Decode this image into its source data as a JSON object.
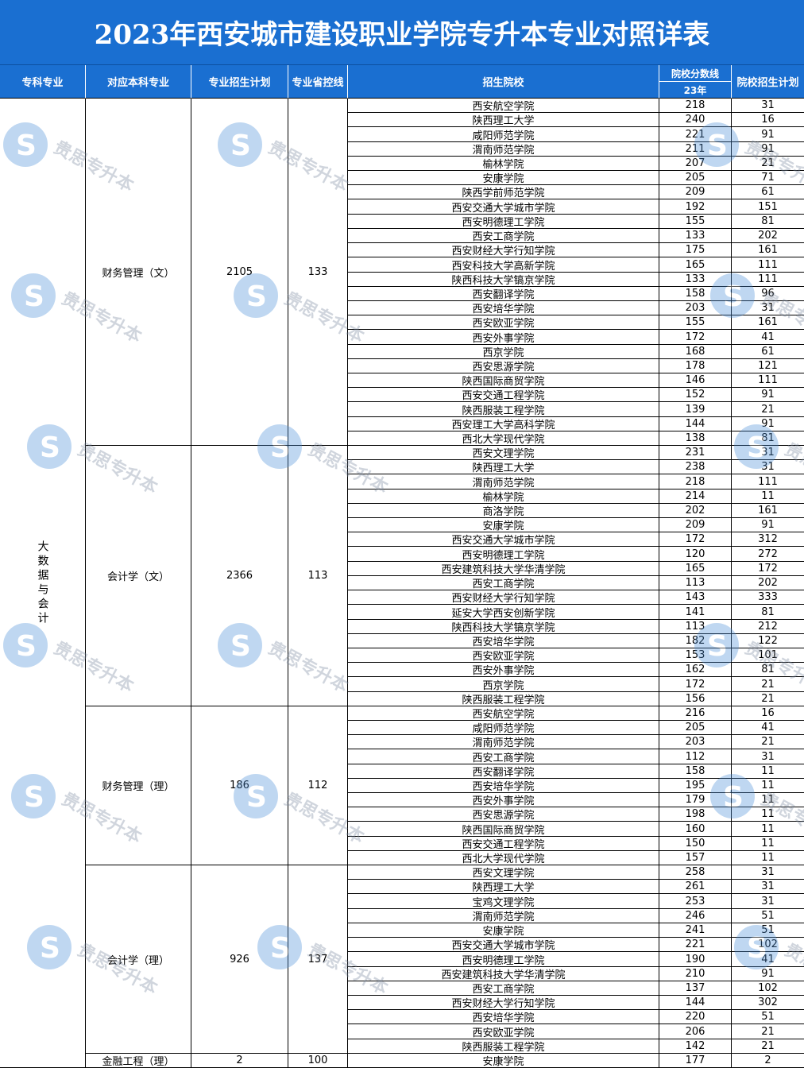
{
  "title": "2023年西安城市建设职业学院专升本专业对照详表",
  "headers": {
    "zhuanke": "专科专业",
    "benke": "对应本科专业",
    "plan": "专业招生计划",
    "control": "专业省控线",
    "school": "招生院校",
    "score_top": "院校分数线",
    "score_year": "23年",
    "school_plan": "院校招生计划"
  },
  "zhuanke_major": "大数据与会计",
  "groups": [
    {
      "major": "财务管理（文）",
      "plan": "2105",
      "control": "133",
      "count": 24
    },
    {
      "major": "会计学（文）",
      "plan": "2366",
      "control": "113",
      "count": 18
    },
    {
      "major": "财务管理（理）",
      "plan": "186",
      "control": "112",
      "count": 11
    },
    {
      "major": "会计学（理）",
      "plan": "926",
      "control": "137",
      "count": 13
    },
    {
      "major": "金融工程（理）",
      "plan": "2",
      "control": "100",
      "count": 1
    }
  ],
  "rows": [
    [
      "西安航空学院",
      "218",
      "31"
    ],
    [
      "陕西理工大学",
      "240",
      "16"
    ],
    [
      "咸阳师范学院",
      "221",
      "91"
    ],
    [
      "渭南师范学院",
      "211",
      "91"
    ],
    [
      "榆林学院",
      "207",
      "21"
    ],
    [
      "安康学院",
      "205",
      "71"
    ],
    [
      "陕西学前师范学院",
      "209",
      "61"
    ],
    [
      "西安交通大学城市学院",
      "192",
      "151"
    ],
    [
      "西安明德理工学院",
      "155",
      "81"
    ],
    [
      "西安工商学院",
      "133",
      "202"
    ],
    [
      "西安财经大学行知学院",
      "175",
      "161"
    ],
    [
      "西安科技大学高新学院",
      "165",
      "111"
    ],
    [
      "陕西科技大学镐京学院",
      "133",
      "111"
    ],
    [
      "西安翻译学院",
      "158",
      "96"
    ],
    [
      "西安培华学院",
      "203",
      "31"
    ],
    [
      "西安欧亚学院",
      "155",
      "161"
    ],
    [
      "西安外事学院",
      "172",
      "41"
    ],
    [
      "西京学院",
      "168",
      "61"
    ],
    [
      "西安思源学院",
      "178",
      "121"
    ],
    [
      "陕西国际商贸学院",
      "146",
      "111"
    ],
    [
      "西安交通工程学院",
      "152",
      "91"
    ],
    [
      "陕西服装工程学院",
      "139",
      "21"
    ],
    [
      "西安理工大学高科学院",
      "144",
      "91"
    ],
    [
      "西北大学现代学院",
      "138",
      "81"
    ],
    [
      "西安文理学院",
      "231",
      "31"
    ],
    [
      "陕西理工大学",
      "238",
      "31"
    ],
    [
      "渭南师范学院",
      "218",
      "111"
    ],
    [
      "榆林学院",
      "214",
      "11"
    ],
    [
      "商洛学院",
      "202",
      "161"
    ],
    [
      "安康学院",
      "209",
      "91"
    ],
    [
      "西安交通大学城市学院",
      "172",
      "312"
    ],
    [
      "西安明德理工学院",
      "120",
      "272"
    ],
    [
      "西安建筑科技大学华清学院",
      "165",
      "172"
    ],
    [
      "西安工商学院",
      "113",
      "202"
    ],
    [
      "西安财经大学行知学院",
      "143",
      "333"
    ],
    [
      "延安大学西安创新学院",
      "141",
      "81"
    ],
    [
      "陕西科技大学镐京学院",
      "113",
      "212"
    ],
    [
      "西安培华学院",
      "182",
      "122"
    ],
    [
      "西安欧亚学院",
      "153",
      "101"
    ],
    [
      "西安外事学院",
      "162",
      "81"
    ],
    [
      "西京学院",
      "172",
      "21"
    ],
    [
      "陕西服装工程学院",
      "156",
      "21"
    ],
    [
      "西安航空学院",
      "216",
      "16"
    ],
    [
      "咸阳师范学院",
      "205",
      "41"
    ],
    [
      "渭南师范学院",
      "203",
      "21"
    ],
    [
      "西安工商学院",
      "112",
      "31"
    ],
    [
      "西安翻译学院",
      "158",
      "11"
    ],
    [
      "西安培华学院",
      "195",
      "11"
    ],
    [
      "西安外事学院",
      "179",
      "11"
    ],
    [
      "西安思源学院",
      "198",
      "11"
    ],
    [
      "陕西国际商贸学院",
      "160",
      "11"
    ],
    [
      "西安交通工程学院",
      "150",
      "11"
    ],
    [
      "西北大学现代学院",
      "157",
      "11"
    ],
    [
      "西安文理学院",
      "258",
      "31"
    ],
    [
      "陕西理工大学",
      "261",
      "31"
    ],
    [
      "宝鸡文理学院",
      "253",
      "31"
    ],
    [
      "渭南师范学院",
      "246",
      "51"
    ],
    [
      "安康学院",
      "241",
      "51"
    ],
    [
      "西安交通大学城市学院",
      "221",
      "102"
    ],
    [
      "西安明德理工学院",
      "190",
      "41"
    ],
    [
      "西安建筑科技大学华清学院",
      "210",
      "91"
    ],
    [
      "西安工商学院",
      "137",
      "102"
    ],
    [
      "西安财经大学行知学院",
      "144",
      "302"
    ],
    [
      "西安培华学院",
      "220",
      "51"
    ],
    [
      "西安欧亚学院",
      "206",
      "21"
    ],
    [
      "陕西服装工程学院",
      "142",
      "21"
    ],
    [
      "安康学院",
      "177",
      "2"
    ]
  ],
  "watermark_text": "贵思专升本",
  "colors": {
    "header_bg": "#1a6fd1",
    "header_text": "#ffffff",
    "watermark": "#4a90d9"
  }
}
